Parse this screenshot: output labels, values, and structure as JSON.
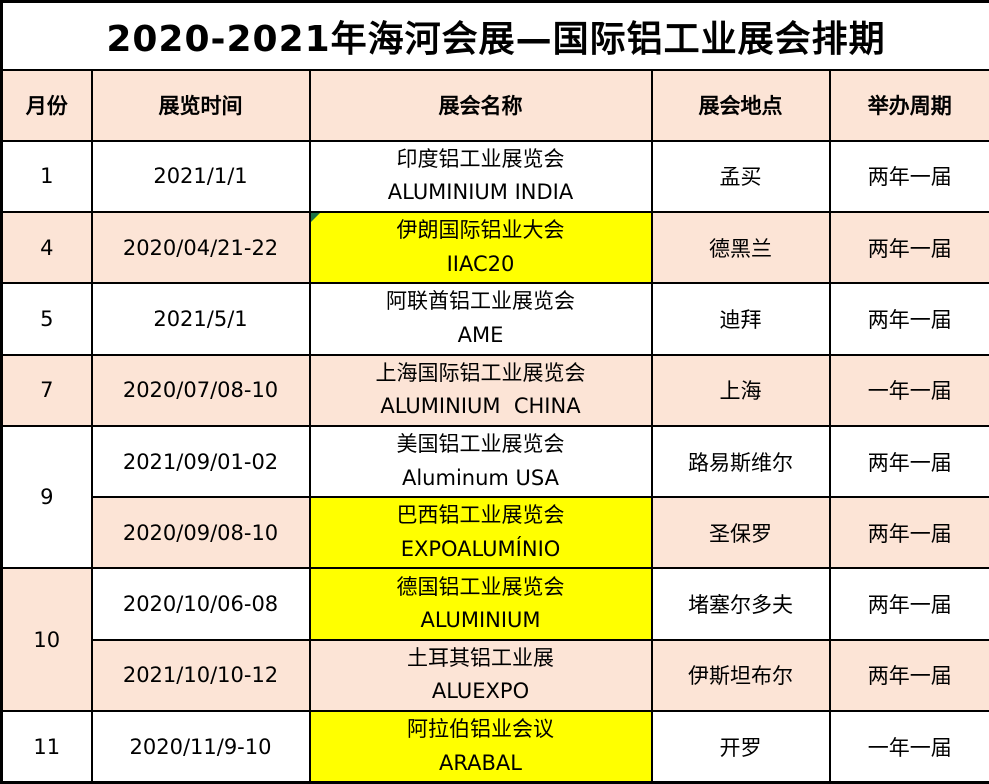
{
  "title": "2020-2021年海河会展—国际铝工业展会排期",
  "columns": [
    "月份",
    "展览时间",
    "展会名称",
    "展会地点",
    "举办周期"
  ],
  "colors": {
    "text": "#000000",
    "border": "#000000",
    "header_bg": "#fce4d6",
    "band_bg": "#fce4d6",
    "highlight_bg": "#ffff00",
    "flag_green": "#1e7145"
  },
  "rows": [
    {
      "month": "1",
      "date": "2021/1/1",
      "name_zh": "印度铝工业展览会",
      "name_en": "ALUMINIUM INDIA",
      "location": "孟买",
      "cycle": "两年一届"
    },
    {
      "month": "4",
      "date": "2020/04/21-22",
      "name_zh": "伊朗国际铝业大会",
      "name_en": "IIAC20",
      "location": "德黑兰",
      "cycle": "两年一届"
    },
    {
      "month": "5",
      "date": "2021/5/1",
      "name_zh": "阿联酋铝工业展览会",
      "name_en": "AME",
      "location": "迪拜",
      "cycle": "两年一届"
    },
    {
      "month": "7",
      "date": "2020/07/08-10",
      "name_zh": "上海国际铝工业展览会",
      "name_en": "ALUMINIUM  CHINA",
      "location": "上海",
      "cycle": "一年一届"
    },
    {
      "month": "9",
      "date": "2021/09/01-02",
      "name_zh": "美国铝工业展览会",
      "name_en": "Aluminum USA",
      "location": "路易斯维尔",
      "cycle": "两年一届"
    },
    {
      "month": "9",
      "date": "2020/09/08-10",
      "name_zh": "巴西铝工业展览会",
      "name_en": "EXPOALUMÍNIO",
      "location": "圣保罗",
      "cycle": "两年一届"
    },
    {
      "month": "10",
      "date": "2020/10/06-08",
      "name_zh": "德国铝工业展览会",
      "name_en": "ALUMINIUM",
      "location": "堵塞尔多夫",
      "cycle": "两年一届"
    },
    {
      "month": "10",
      "date": "2021/10/10-12",
      "name_zh": "土耳其铝工业展",
      "name_en": "ALUEXPO",
      "location": "伊斯坦布尔",
      "cycle": "两年一届"
    },
    {
      "month": "11",
      "date": "2020/11/9-10",
      "name_zh": "阿拉伯铝业会议",
      "name_en": "ARABAL",
      "location": "开罗",
      "cycle": "一年一届"
    }
  ]
}
